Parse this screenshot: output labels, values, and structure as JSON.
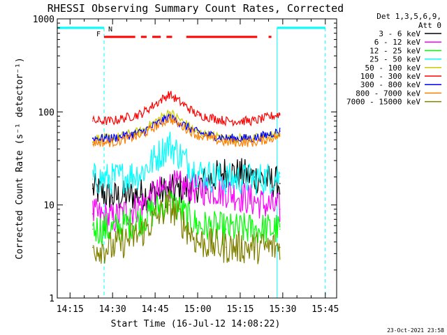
{
  "chart_data": {
    "type": "line",
    "title": "RHESSI Observing Summary Count Rates, Corrected",
    "xlabel": "Start Time (16-Jul-12 14:08:22)",
    "ylabel": "Corrected Count Rate (s⁻¹ detector⁻¹)",
    "y_scale": "log",
    "ylim": [
      1,
      1000
    ],
    "xlim": [
      "14:10:30",
      "15:49:00"
    ],
    "x_ticks": [
      "14:15",
      "14:30",
      "14:45",
      "15:00",
      "15:15",
      "15:30",
      "15:45"
    ],
    "y_ticks": [
      "1",
      "10",
      "100",
      "1000"
    ],
    "grid": false,
    "legend": {
      "position": "top-right",
      "header": [
        "Det 1,3,5,6,9,",
        "Att 0"
      ]
    },
    "series": [
      {
        "name": "3 - 6 keV",
        "color": "#000000",
        "x": [
          "14:23",
          "14:30",
          "14:40",
          "14:50",
          "15:00",
          "15:10",
          "15:20",
          "15:29"
        ],
        "values": [
          15,
          12,
          13,
          14,
          16,
          23,
          20,
          17
        ]
      },
      {
        "name": "6 - 12 keV",
        "color": "#ff00ff",
        "x": [
          "14:23",
          "14:30",
          "14:40",
          "14:50",
          "15:00",
          "15:10",
          "15:20",
          "15:29"
        ],
        "values": [
          8,
          7,
          10,
          16,
          15,
          14,
          11,
          9
        ]
      },
      {
        "name": "12 - 25 keV",
        "color": "#00ff00",
        "x": [
          "14:23",
          "14:30",
          "14:40",
          "14:50",
          "15:00",
          "15:10",
          "15:20",
          "15:29"
        ],
        "values": [
          5.5,
          5.5,
          7,
          11,
          6,
          5.5,
          5.5,
          5.5
        ]
      },
      {
        "name": "25 - 50 keV",
        "color": "#00ffff",
        "x": [
          "14:23",
          "14:30",
          "14:40",
          "14:50",
          "15:00",
          "15:10",
          "15:20",
          "15:29"
        ],
        "values": [
          19,
          19,
          22,
          45,
          22,
          19,
          19,
          20
        ]
      },
      {
        "name": "50 - 100 keV",
        "color": "#cccc00",
        "x": [
          "14:23",
          "14:30",
          "14:40",
          "14:50",
          "15:00",
          "15:10",
          "15:20",
          "15:29"
        ],
        "values": [
          52,
          52,
          62,
          100,
          60,
          52,
          52,
          58
        ]
      },
      {
        "name": "100 - 300 keV",
        "color": "#ff0000",
        "x": [
          "14:23",
          "14:30",
          "14:40",
          "14:50",
          "15:00",
          "15:10",
          "15:20",
          "15:29"
        ],
        "values": [
          80,
          80,
          95,
          155,
          93,
          80,
          80,
          95
        ]
      },
      {
        "name": "300 - 800 keV",
        "color": "#0000ff",
        "x": [
          "14:23",
          "14:30",
          "14:40",
          "14:50",
          "15:00",
          "15:10",
          "15:20",
          "15:29"
        ],
        "values": [
          52,
          52,
          60,
          88,
          60,
          52,
          52,
          62
        ]
      },
      {
        "name": "800 - 7000 keV",
        "color": "#ff8000",
        "x": [
          "14:23",
          "14:30",
          "14:40",
          "14:50",
          "15:00",
          "15:10",
          "15:20",
          "15:29"
        ],
        "values": [
          47,
          47,
          56,
          85,
          56,
          47,
          47,
          55
        ]
      },
      {
        "name": "7000 - 15000 keV",
        "color": "#808000",
        "x": [
          "14:23",
          "14:30",
          "14:40",
          "14:50",
          "15:00",
          "15:10",
          "15:20",
          "15:29"
        ],
        "values": [
          3.5,
          3.5,
          5,
          10,
          4,
          3.5,
          3.5,
          3.5
        ]
      }
    ],
    "annotations": {
      "night_label": "N",
      "flare_label": "F",
      "flare_intervals": [
        [
          "14:27",
          "14:38"
        ],
        [
          "14:40",
          "14:42"
        ],
        [
          "14:44",
          "14:47"
        ],
        [
          "14:49",
          "14:51"
        ],
        [
          "14:56",
          "15:21"
        ],
        [
          "15:25",
          "15:26"
        ]
      ],
      "night_intervals": [
        [
          "14:10:30",
          "14:27"
        ],
        [
          "15:28",
          "15:45"
        ]
      ]
    },
    "footer_date": "23-Oct-2021 23:58"
  }
}
